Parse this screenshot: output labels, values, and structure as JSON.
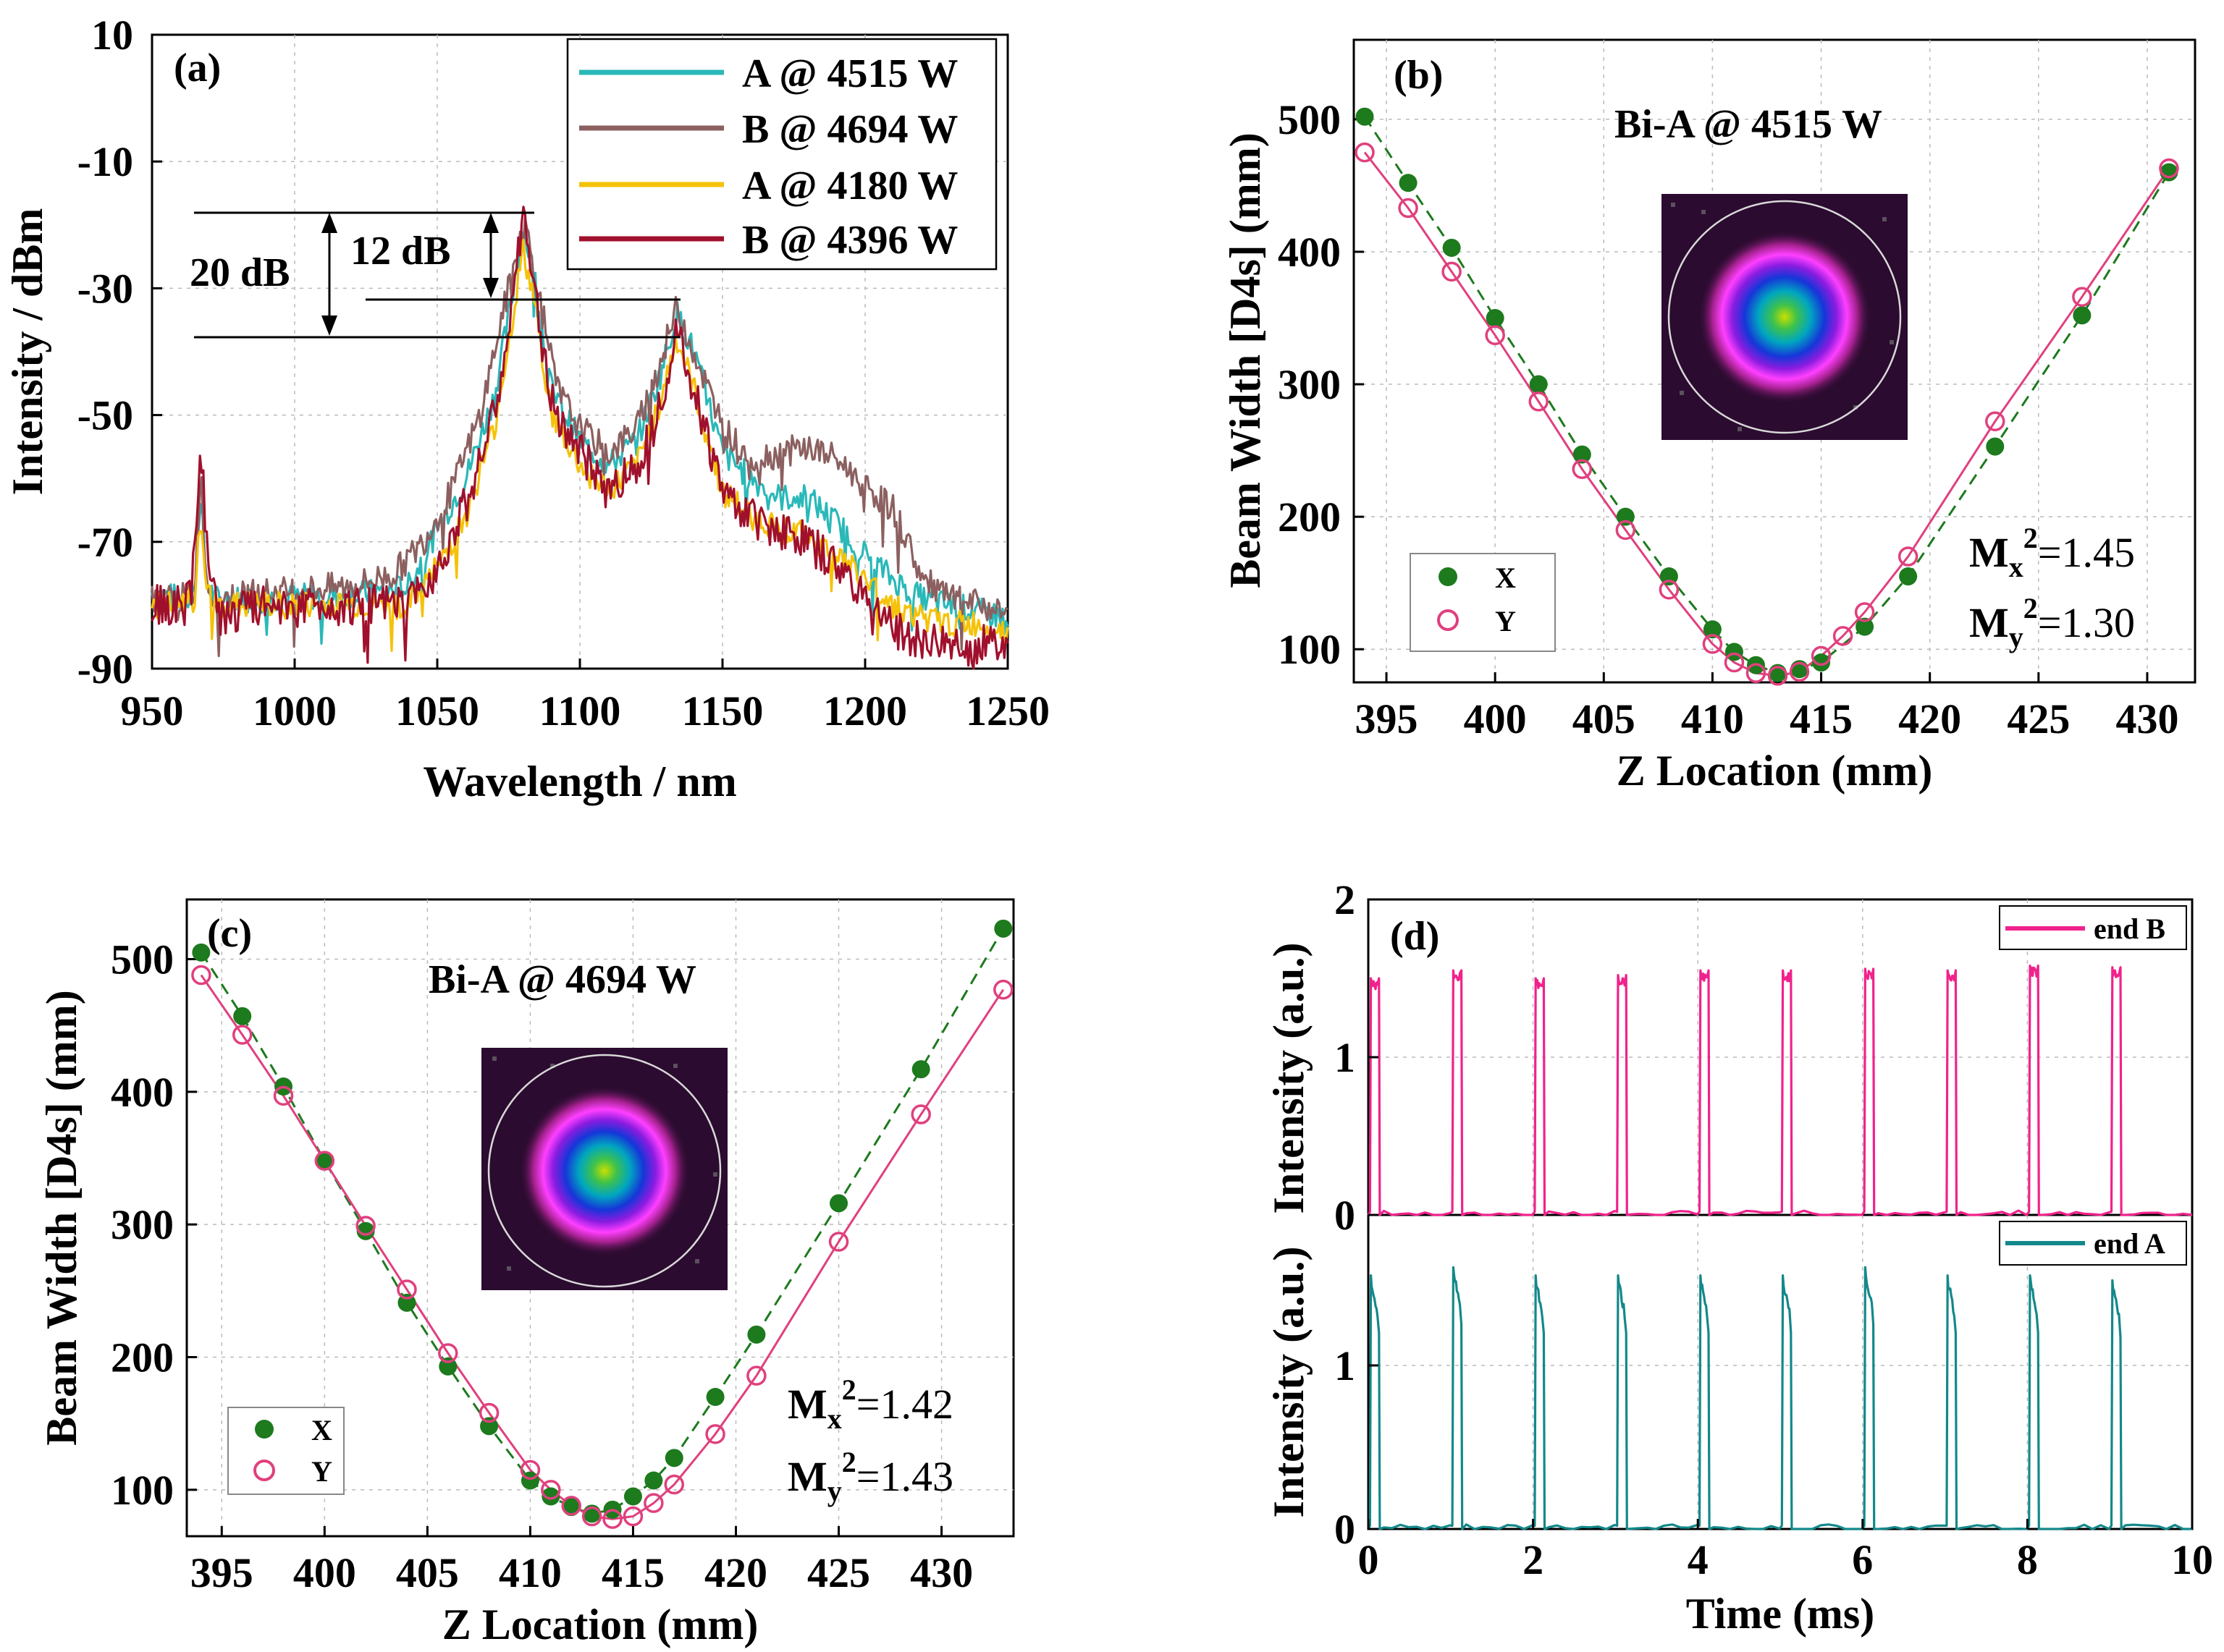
{
  "colors": {
    "cyan_A": "#2ab8b8",
    "brown_B": "#8c6060",
    "yellow_A": "#f5c20a",
    "crimson_B": "#a0102c",
    "green_X": "#1d7a1d",
    "pink_Y": "#e0407e",
    "teal_endA": "#13888a",
    "magenta_endB": "#f0228c"
  },
  "chart_data": [
    {
      "id": "a",
      "type": "line",
      "panel_label": "(a)",
      "xlabel": "Wavelength / nm",
      "ylabel": "Intensity / dBm",
      "xlim": [
        950,
        1250
      ],
      "ylim": [
        -90,
        10
      ],
      "xticks": [
        "950",
        "1000",
        "1050",
        "1100",
        "1150",
        "1200",
        "1250"
      ],
      "yticks": [
        "10",
        "-10",
        "-30",
        "-50",
        "-70",
        "-90"
      ],
      "legend": [
        {
          "label": "A @ 4515 W",
          "color_key": "cyan_A"
        },
        {
          "label": "B @ 4694 W",
          "color_key": "brown_B"
        },
        {
          "label": "A @ 4180 W",
          "color_key": "yellow_A"
        },
        {
          "label": "B @ 4396 W",
          "color_key": "crimson_B"
        }
      ],
      "series": [
        {
          "name": "A @ 4515 W",
          "color_key": "cyan_A",
          "x": [
            950,
            960,
            965,
            967,
            969,
            972,
            990,
            1030,
            1040,
            1050,
            1060,
            1070,
            1076,
            1080,
            1084,
            1090,
            1100,
            1110,
            1120,
            1128,
            1134,
            1140,
            1150,
            1160,
            1170,
            1180,
            1190,
            1200,
            1210,
            1220,
            1230,
            1240,
            1250
          ],
          "y": [
            -78,
            -79,
            -78,
            -62,
            -76,
            -79,
            -79,
            -78,
            -77,
            -68,
            -60,
            -47,
            -32,
            -20,
            -28,
            -46,
            -54,
            -58,
            -54,
            -44,
            -34,
            -40,
            -56,
            -60,
            -63,
            -63,
            -67,
            -72,
            -76,
            -79,
            -80,
            -81,
            -82
          ]
        },
        {
          "name": "B @ 4694 W",
          "color_key": "brown_B",
          "x": [
            950,
            960,
            965,
            967,
            969,
            972,
            990,
            1020,
            1035,
            1045,
            1055,
            1065,
            1072,
            1078,
            1081,
            1086,
            1092,
            1100,
            1110,
            1120,
            1128,
            1134,
            1140,
            1150,
            1160,
            1170,
            1180,
            1190,
            1200,
            1210,
            1215,
            1220,
            1230,
            1240,
            1250
          ],
          "y": [
            -79,
            -79,
            -78,
            -58,
            -76,
            -79,
            -78,
            -77,
            -75,
            -70,
            -62,
            -50,
            -36,
            -24,
            -20,
            -32,
            -46,
            -52,
            -56,
            -52,
            -42,
            -33,
            -40,
            -52,
            -57,
            -56,
            -55,
            -57,
            -61,
            -65,
            -70,
            -76,
            -79,
            -80,
            -81
          ]
        },
        {
          "name": "A @ 4180 W",
          "color_key": "yellow_A",
          "x": [
            950,
            960,
            965,
            967,
            969,
            972,
            990,
            1030,
            1040,
            1050,
            1060,
            1070,
            1076,
            1080,
            1084,
            1090,
            1100,
            1110,
            1120,
            1128,
            1134,
            1140,
            1150,
            1160,
            1170,
            1180,
            1190,
            1200,
            1210,
            1220,
            1230,
            1240,
            1250
          ],
          "y": [
            -80,
            -80,
            -79,
            -66,
            -77,
            -80,
            -80,
            -80,
            -80,
            -74,
            -66,
            -52,
            -36,
            -24,
            -32,
            -50,
            -58,
            -62,
            -58,
            -48,
            -38,
            -46,
            -62,
            -66,
            -68,
            -69,
            -72,
            -76,
            -80,
            -82,
            -83,
            -83,
            -84
          ]
        },
        {
          "name": "B @ 4396 W",
          "color_key": "crimson_B",
          "x": [
            950,
            960,
            964,
            967,
            970,
            973,
            990,
            1020,
            1040,
            1050,
            1060,
            1070,
            1076,
            1080,
            1084,
            1090,
            1100,
            1110,
            1120,
            1128,
            1134,
            1140,
            1150,
            1160,
            1170,
            1180,
            1190,
            1200,
            1210,
            1220,
            1230,
            1240,
            1250
          ],
          "y": [
            -80,
            -80,
            -78,
            -55,
            -74,
            -82,
            -80,
            -80,
            -80,
            -74,
            -64,
            -50,
            -34,
            -19,
            -30,
            -48,
            -56,
            -62,
            -58,
            -48,
            -37,
            -46,
            -62,
            -66,
            -68,
            -70,
            -74,
            -78,
            -84,
            -86,
            -86,
            -86,
            -86
          ]
        }
      ],
      "annotations": [
        {
          "text": "20 dB",
          "x": 1025,
          "y": -29
        },
        {
          "text": "12 dB",
          "x": 1062,
          "y": -25
        }
      ]
    },
    {
      "id": "b",
      "type": "scatter",
      "panel_label": "(b)",
      "title": "Bi-A @ 4515 W",
      "xlabel": "Z Location (mm)",
      "ylabel": "Beam Width [D4s] (mm)",
      "xlim": [
        393.5,
        432.2
      ],
      "ylim": [
        75,
        560
      ],
      "xticks": [
        "395",
        "400",
        "405",
        "410",
        "415",
        "420",
        "425",
        "430"
      ],
      "yticks": [
        "100",
        "200",
        "300",
        "400",
        "500"
      ],
      "legend": [
        {
          "label": "X",
          "color_key": "green_X"
        },
        {
          "label": "Y",
          "color_key": "pink_Y"
        }
      ],
      "m2": [
        {
          "axis": "x",
          "value": "=1.45"
        },
        {
          "axis": "y",
          "value": "=1.30"
        }
      ],
      "series": [
        {
          "name": "X",
          "color_key": "green_X",
          "x": [
            394,
            396,
            398,
            400,
            402,
            404,
            406,
            408,
            410,
            411,
            412,
            413,
            414,
            415,
            417,
            419,
            423,
            427,
            431
          ],
          "y": [
            502,
            452,
            403,
            350,
            300,
            247,
            200,
            155,
            115,
            98,
            88,
            82,
            85,
            90,
            117,
            155,
            253,
            352,
            460
          ]
        },
        {
          "name": "Y",
          "color_key": "pink_Y",
          "x": [
            394,
            396,
            398,
            400,
            402,
            404,
            406,
            408,
            410,
            411,
            412,
            413,
            414,
            415,
            416,
            417,
            419,
            423,
            427,
            431
          ],
          "y": [
            475,
            433,
            385,
            337,
            287,
            236,
            190,
            145,
            104,
            90,
            82,
            80,
            83,
            95,
            110,
            128,
            170,
            272,
            366,
            463
          ]
        }
      ]
    },
    {
      "id": "c",
      "type": "scatter",
      "panel_label": "(c)",
      "title": "Bi-A @ 4694 W",
      "xlabel": "Z Location (mm)",
      "ylabel": "Beam Width [D4s] (mm)",
      "xlim": [
        393.3,
        433.5
      ],
      "ylim": [
        65,
        545
      ],
      "xticks": [
        "395",
        "400",
        "405",
        "410",
        "415",
        "420",
        "425",
        "430"
      ],
      "yticks": [
        "100",
        "200",
        "300",
        "400",
        "500"
      ],
      "legend": [
        {
          "label": "X",
          "color_key": "green_X"
        },
        {
          "label": "Y",
          "color_key": "pink_Y"
        }
      ],
      "m2": [
        {
          "axis": "x",
          "value": "=1.42"
        },
        {
          "axis": "y",
          "value": "=1.43"
        }
      ],
      "series": [
        {
          "name": "X",
          "color_key": "green_X",
          "x": [
            394,
            396,
            398,
            400,
            402,
            404,
            406,
            408,
            410,
            411,
            412,
            413,
            414,
            415,
            416,
            417,
            419,
            421,
            425,
            429,
            433
          ],
          "y": [
            505,
            457,
            404,
            348,
            295,
            241,
            193,
            148,
            107,
            95,
            87,
            82,
            85,
            95,
            107,
            124,
            170,
            217,
            316,
            417,
            523
          ]
        },
        {
          "name": "Y",
          "color_key": "pink_Y",
          "x": [
            394,
            396,
            398,
            400,
            402,
            404,
            406,
            408,
            410,
            411,
            412,
            413,
            414,
            415,
            416,
            417,
            419,
            421,
            425,
            429,
            433
          ],
          "y": [
            488,
            443,
            397,
            348,
            299,
            251,
            203,
            158,
            115,
            100,
            88,
            80,
            78,
            80,
            90,
            104,
            142,
            186,
            287,
            383,
            477
          ]
        }
      ]
    },
    {
      "id": "d",
      "type": "line",
      "panel_label": "(d)",
      "xlabel": "Time (ms)",
      "ylabel_top": "Intensity (a.u.)",
      "ylabel_bottom": "Intensity (a.u.)",
      "xlim": [
        0,
        10
      ],
      "ylim": [
        0,
        2
      ],
      "xticks": [
        "0",
        "2",
        "4",
        "6",
        "8",
        "10"
      ],
      "yticks_top": [
        "2",
        "1",
        "0"
      ],
      "yticks_bottom": [
        "1",
        "0"
      ],
      "legend": [
        {
          "label": "end B",
          "color_key": "magenta_endB"
        },
        {
          "label": "end A",
          "color_key": "teal_endA"
        }
      ],
      "series": [
        {
          "name": "end B",
          "color_key": "magenta_endB",
          "pulse_start": [
            0.02,
            1.02,
            2.02,
            3.02,
            4.02,
            5.02,
            6.02,
            7.02,
            8.02,
            9.02
          ],
          "pulse_peak": [
            1.5,
            1.55,
            1.5,
            1.52,
            1.55,
            1.55,
            1.56,
            1.55,
            1.58,
            1.57
          ],
          "pulse_width_ms": 0.12
        },
        {
          "name": "end A",
          "color_key": "teal_endA",
          "pulse_start": [
            0.02,
            1.02,
            2.02,
            3.02,
            4.02,
            5.02,
            6.02,
            7.02,
            8.02,
            9.02
          ],
          "pulse_peak": [
            1.55,
            1.6,
            1.55,
            1.55,
            1.55,
            1.55,
            1.6,
            1.55,
            1.55,
            1.52
          ],
          "pulse_width_ms": 0.12
        }
      ]
    }
  ]
}
